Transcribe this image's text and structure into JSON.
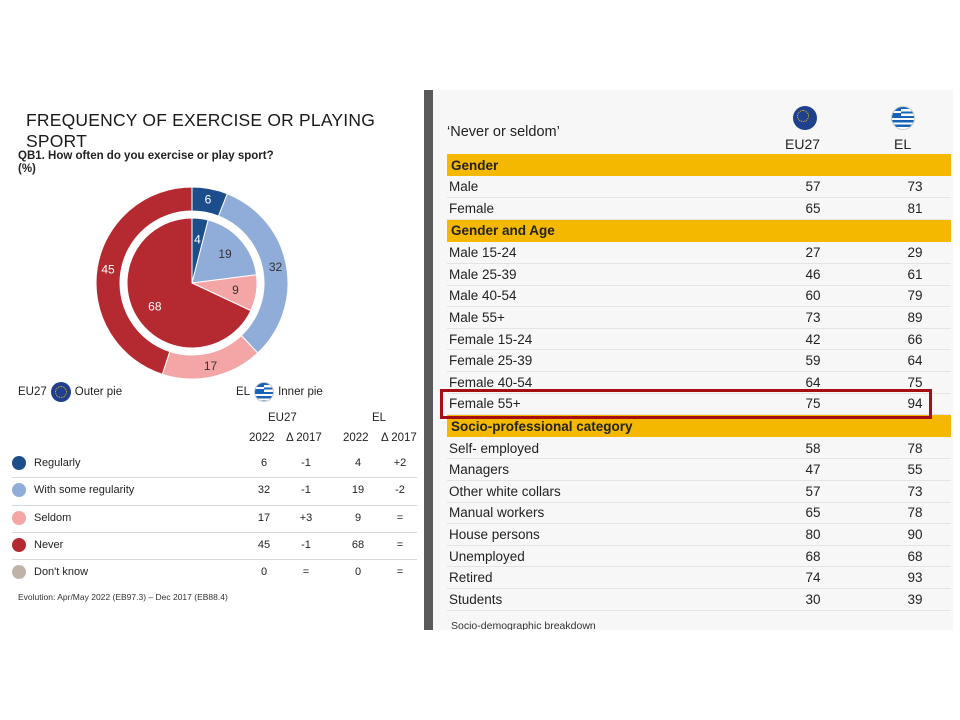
{
  "left": {
    "title": "FREQUENCY OF EXERCISE OR PLAYING SPORT",
    "question": "QB1. How often do you exercise or play sport?",
    "unit": "(%)",
    "legend_outer_code": "EU27",
    "legend_outer_label": "Outer pie",
    "legend_inner_code": "EL",
    "legend_inner_label": "Inner pie",
    "col_eu27": "EU27",
    "col_el": "EL",
    "col_2022": "2022",
    "col_delta": "Δ 2017",
    "footnote": "Evolution: Apr/May 2022 (EB97.3) – Dec 2017 (EB88.4)"
  },
  "chart_data": {
    "type": "pie",
    "categories": [
      "Regularly",
      "With some regularity",
      "Seldom",
      "Never",
      "Don't know"
    ],
    "colors": [
      "#1b4e8a",
      "#8fadd8",
      "#f4a6a6",
      "#b52a31",
      "#bfb3a8"
    ],
    "series": [
      {
        "name": "EU27",
        "ring": "outer",
        "values": [
          6,
          32,
          17,
          45,
          0
        ],
        "delta": [
          "-1",
          "-1",
          "+3",
          "-1",
          "="
        ]
      },
      {
        "name": "EL",
        "ring": "inner",
        "values": [
          4,
          19,
          9,
          68,
          0
        ],
        "delta": [
          "+2",
          "-2",
          "=",
          "=",
          "="
        ]
      }
    ]
  },
  "right": {
    "title": "‘Never or seldom’",
    "col1": "EU27",
    "col2": "EL",
    "sections": [
      {
        "label": "Gender",
        "rows": [
          {
            "label": "Male",
            "eu27": 57,
            "el": 73
          },
          {
            "label": "Female",
            "eu27": 65,
            "el": 81
          }
        ]
      },
      {
        "label": "Gender and Age",
        "rows": [
          {
            "label": "Male 15-24",
            "eu27": 27,
            "el": 29
          },
          {
            "label": "Male 25-39",
            "eu27": 46,
            "el": 61
          },
          {
            "label": "Male 40-54",
            "eu27": 60,
            "el": 79
          },
          {
            "label": "Male 55+",
            "eu27": 73,
            "el": 89
          },
          {
            "label": "Female 15-24",
            "eu27": 42,
            "el": 66
          },
          {
            "label": "Female 25-39",
            "eu27": 59,
            "el": 64
          },
          {
            "label": "Female 40-54",
            "eu27": 64,
            "el": 75
          },
          {
            "label": "Female 55+",
            "eu27": 75,
            "el": 94
          }
        ]
      },
      {
        "label": "Socio-professional category",
        "rows": [
          {
            "label": "Self- employed",
            "eu27": 58,
            "el": 78
          },
          {
            "label": "Managers",
            "eu27": 47,
            "el": 55
          },
          {
            "label": "Other white collars",
            "eu27": 57,
            "el": 73
          },
          {
            "label": "Manual workers",
            "eu27": 65,
            "el": 78
          },
          {
            "label": "House persons",
            "eu27": 80,
            "el": 90
          },
          {
            "label": "Unemployed",
            "eu27": 68,
            "el": 68
          },
          {
            "label": "Retired",
            "eu27": 74,
            "el": 93
          },
          {
            "label": "Students",
            "eu27": 30,
            "el": 39
          }
        ]
      }
    ],
    "footer": "Socio-demographic breakdown"
  }
}
